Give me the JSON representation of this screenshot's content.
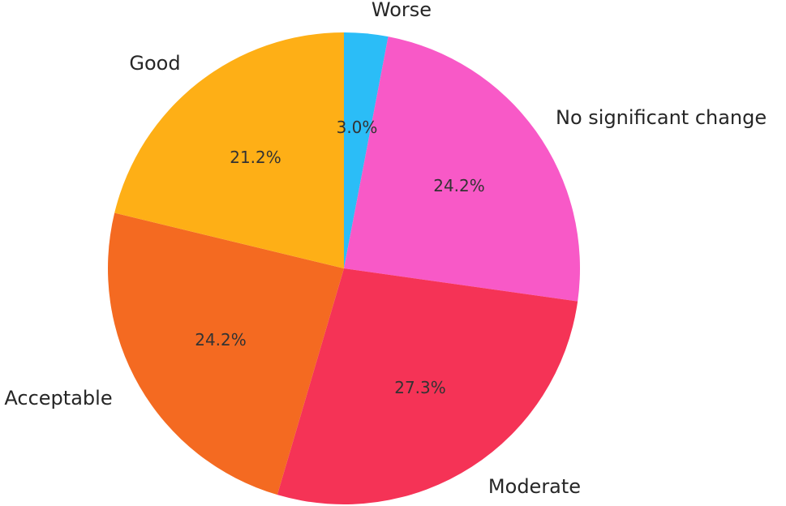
{
  "chart_data": {
    "type": "pie",
    "start_angle_deg": 90,
    "direction": "clockwise",
    "slices": [
      {
        "label": "Worse",
        "value": 3.0,
        "pct_label": "3.0%",
        "color": "#2BBDF7"
      },
      {
        "label": "No significant change",
        "value": 24.2,
        "pct_label": "24.2%",
        "color": "#F859C7"
      },
      {
        "label": "Moderate",
        "value": 27.3,
        "pct_label": "27.3%",
        "color": "#F53356"
      },
      {
        "label": "Acceptable",
        "value": 24.2,
        "pct_label": "24.2%",
        "color": "#F46A21"
      },
      {
        "label": "Good",
        "value": 21.2,
        "pct_label": "21.2%",
        "color": "#FEAF16"
      }
    ]
  }
}
